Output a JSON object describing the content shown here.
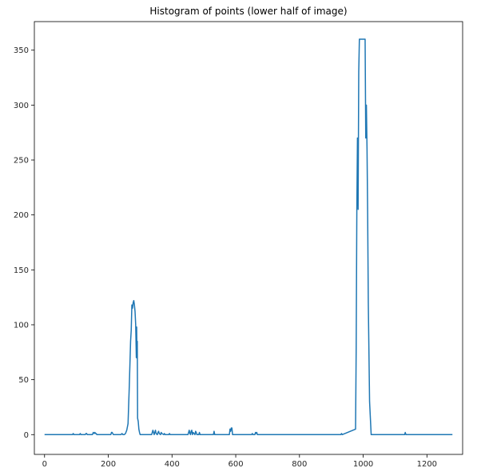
{
  "chart_data": {
    "type": "line",
    "title": "Histogram of points (lower half of image)",
    "xlabel": "",
    "ylabel": "",
    "xlim": [
      -32,
      1312
    ],
    "ylim": [
      -18,
      376
    ],
    "grid": false,
    "line_color": "#1f77b4",
    "xticks": [
      0,
      200,
      400,
      600,
      800,
      1000,
      1200
    ],
    "yticks": [
      0,
      50,
      100,
      150,
      200,
      250,
      300,
      350
    ],
    "x": [
      0,
      88,
      90,
      92,
      110,
      112,
      114,
      128,
      130,
      132,
      134,
      150,
      153,
      156,
      158,
      160,
      162,
      164,
      168,
      208,
      210,
      212,
      214,
      216,
      240,
      243,
      246,
      250,
      254,
      258,
      262,
      266,
      270,
      272,
      274,
      276,
      278,
      280,
      282,
      284,
      286,
      288,
      289,
      290,
      291,
      292,
      294,
      296,
      298,
      300,
      304,
      336,
      338,
      340,
      342,
      344,
      346,
      348,
      350,
      354,
      356,
      358,
      360,
      364,
      366,
      368,
      374,
      376,
      378,
      390,
      392,
      394,
      450,
      452,
      454,
      456,
      458,
      460,
      462,
      464,
      466,
      472,
      474,
      476,
      478,
      484,
      486,
      488,
      530,
      532,
      534,
      580,
      582,
      584,
      586,
      588,
      590,
      592,
      650,
      652,
      654,
      660,
      662,
      664,
      666,
      668,
      930,
      932,
      934,
      976,
      978,
      980,
      982,
      984,
      986,
      988,
      990,
      992,
      994,
      996,
      998,
      1000,
      1002,
      1004,
      1006,
      1008,
      1010,
      1012,
      1014,
      1016,
      1020,
      1025,
      1030,
      1130,
      1132,
      1134,
      1280
    ],
    "y": [
      0,
      0,
      1,
      0,
      0,
      1,
      0,
      0,
      1,
      1,
      0,
      0,
      2,
      1,
      2,
      1,
      1,
      0,
      0,
      0,
      2,
      2,
      1,
      0,
      0,
      1,
      0,
      0,
      1,
      4,
      10,
      45,
      85,
      95,
      118,
      115,
      120,
      122,
      118,
      112,
      100,
      70,
      98,
      70,
      85,
      15,
      12,
      5,
      2,
      0,
      0,
      0,
      2,
      4,
      2,
      0,
      2,
      4,
      1,
      0,
      2,
      3,
      1,
      0,
      2,
      1,
      0,
      1,
      0,
      0,
      1,
      0,
      0,
      2,
      4,
      1,
      0,
      3,
      4,
      0,
      2,
      0,
      3,
      2,
      0,
      0,
      2,
      0,
      0,
      3,
      0,
      0,
      5,
      3,
      6,
      6,
      0,
      0,
      0,
      1,
      0,
      0,
      2,
      1,
      2,
      0,
      0,
      1,
      0,
      5,
      80,
      205,
      270,
      205,
      330,
      360,
      360,
      360,
      360,
      360,
      360,
      360,
      360,
      360,
      360,
      270,
      300,
      260,
      200,
      120,
      30,
      0,
      0,
      0,
      2,
      0,
      0
    ]
  }
}
